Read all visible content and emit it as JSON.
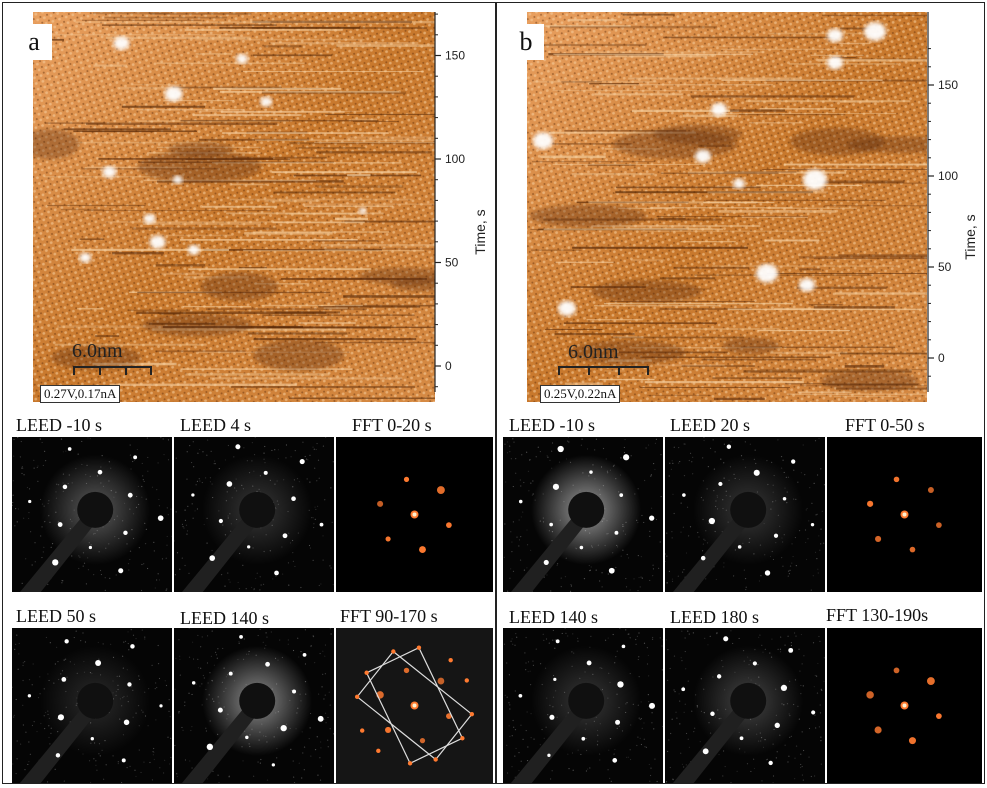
{
  "panels": [
    {
      "letter": "a",
      "axis": {
        "title": "Time, s",
        "ticks": [
          150,
          100,
          50,
          0
        ]
      },
      "scalebar": {
        "length": "6.0nm",
        "params": "0.27V,0.17nA"
      },
      "patterns_row1": [
        {
          "caption": "LEED  -10 s",
          "kind": "LEED"
        },
        {
          "caption": "LEED    4 s",
          "kind": "LEED"
        },
        {
          "caption": "FFT 0-20 s",
          "kind": "FFT"
        }
      ],
      "patterns_row2": [
        {
          "caption": "LEED    50 s",
          "kind": "LEED"
        },
        {
          "caption": "LEED   140 s",
          "kind": "LEED"
        },
        {
          "caption": "FFT 90-170 s",
          "kind": "FFT"
        }
      ]
    },
    {
      "letter": "b",
      "axis": {
        "title": "Time, s",
        "ticks": [
          150,
          100,
          50,
          0
        ]
      },
      "scalebar": {
        "length": "6.0nm",
        "params": "0.25V,0.22nA"
      },
      "patterns_row1": [
        {
          "caption": "LEED  -10 s",
          "kind": "LEED"
        },
        {
          "caption": "LEED    20 s",
          "kind": "LEED"
        },
        {
          "caption": "FFT 0-50 s",
          "kind": "FFT"
        }
      ],
      "patterns_row2": [
        {
          "caption": "LEED   140 s",
          "kind": "LEED"
        },
        {
          "caption": "LEED   180 s",
          "kind": "LEED"
        },
        {
          "caption": "FFT 130-190s",
          "kind": "FFT"
        }
      ]
    }
  ],
  "colors": {
    "stm_dark": "#5a2a08",
    "stm_mid": "#c8782c",
    "stm_light": "#f6d0a0",
    "fft_spot": "#ff7a30",
    "leed_spot": "#ffffff"
  }
}
